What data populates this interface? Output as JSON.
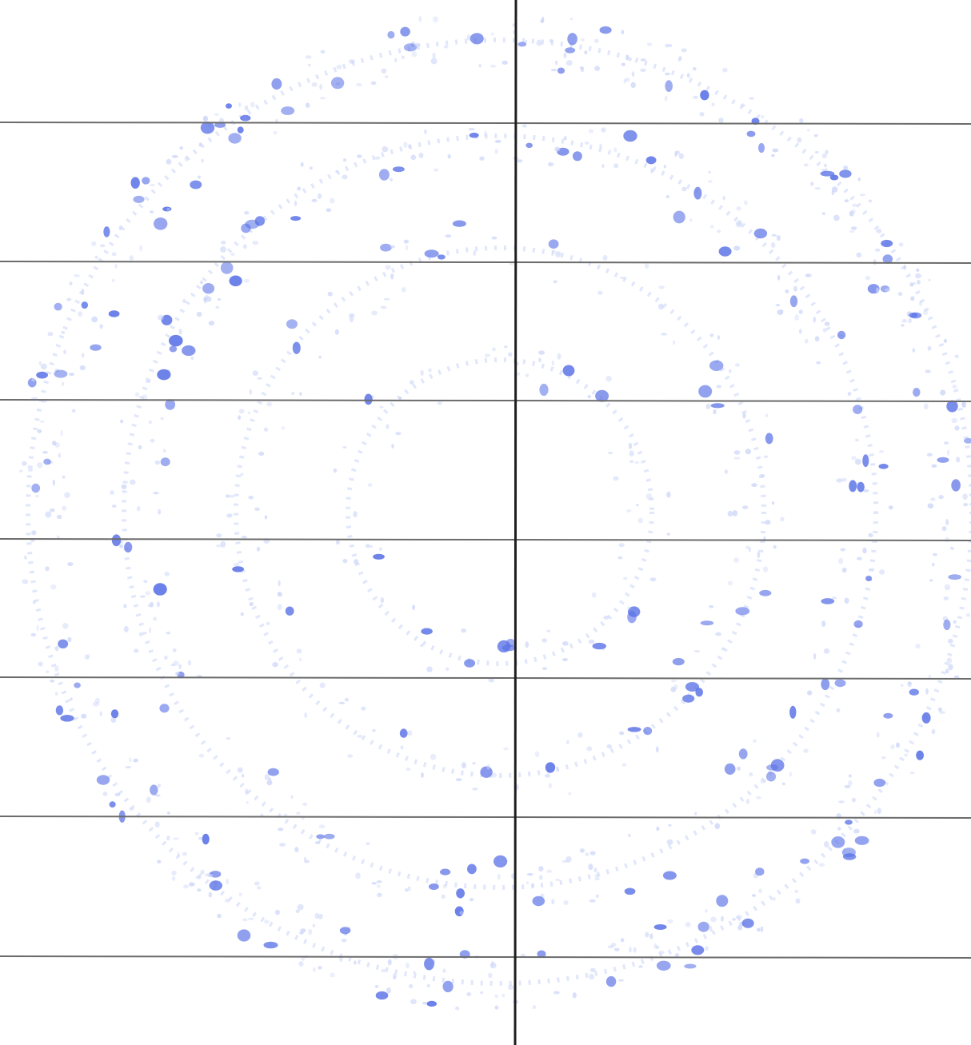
{
  "image": {
    "subject": "diffraction-ring-pattern",
    "background_color": "#ffffff",
    "grid_line_color": "#6b6b6b",
    "axis_line_color": "#1f1f1f",
    "speckle_color": "#5a72e6",
    "faint_speckle_color": "#c9d3f7",
    "horizontal_line_count": 7,
    "vertical_line_count": 1,
    "ring_count": 4
  }
}
